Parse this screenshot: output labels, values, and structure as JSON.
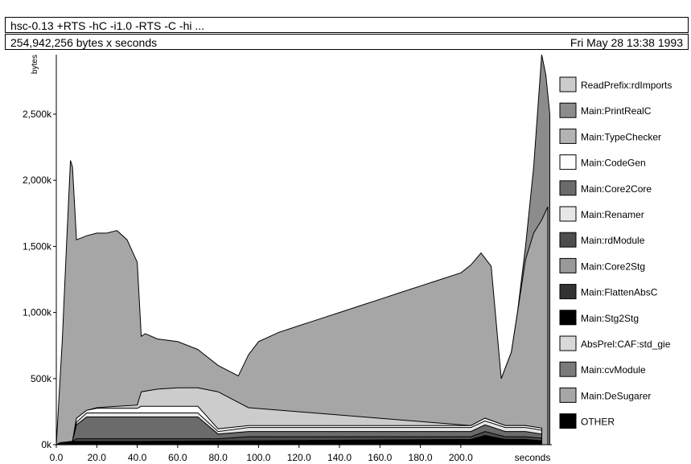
{
  "header": {
    "title": "hsc-0.13  +RTS -hC -i1.0 -RTS  -C -hi ...",
    "bytes_seconds": "254,942,256 bytes x seconds",
    "date": "Fri May 28 13:38 1993"
  },
  "chart_data": {
    "type": "area",
    "xlabel": "seconds",
    "ylabel": "bytes",
    "xlim": [
      0,
      245
    ],
    "ylim": [
      0,
      2950000
    ],
    "x_ticks": [
      0,
      20,
      40,
      60,
      80,
      100,
      120,
      140,
      160,
      180,
      200
    ],
    "x_tick_labels": [
      "0.0",
      "20.0",
      "40.0",
      "60.0",
      "80.0",
      "100.0",
      "120.0",
      "140.0",
      "160.0",
      "180.0",
      "200.0"
    ],
    "y_ticks": [
      0,
      500000,
      1000000,
      1500000,
      2000000,
      2500000
    ],
    "y_tick_labels": [
      "0k",
      "500k",
      "1,000k",
      "1,500k",
      "2,000k",
      "2,500k"
    ],
    "legend_position": "right",
    "legend": [
      {
        "name": "ReadPrefix:rdImports",
        "color": "#cccccc"
      },
      {
        "name": "Main:PrintRealC",
        "color": "#8c8c8c"
      },
      {
        "name": "Main:TypeChecker",
        "color": "#b3b3b3"
      },
      {
        "name": "Main:CodeGen",
        "color": "#ffffff"
      },
      {
        "name": "Main:Core2Core",
        "color": "#6b6b6b"
      },
      {
        "name": "Main:Renamer",
        "color": "#e6e6e6"
      },
      {
        "name": "Main:rdModule",
        "color": "#4d4d4d"
      },
      {
        "name": "Main:Core2Stg",
        "color": "#999999"
      },
      {
        "name": "Main:FlattenAbsC",
        "color": "#333333"
      },
      {
        "name": "Main:Stg2Stg",
        "color": "#000000"
      },
      {
        "name": "AbsPrel:CAF:std_gie",
        "color": "#d9d9d9"
      },
      {
        "name": "Main:cvModule",
        "color": "#7a7a7a"
      },
      {
        "name": "Main:DeSugarer",
        "color": "#a6a6a6"
      },
      {
        "name": "OTHER",
        "color": "#000000"
      }
    ],
    "layers": [
      {
        "name": "OTHER",
        "color": "#000000",
        "x": [
          0,
          2,
          5,
          8,
          40,
          80,
          95,
          205,
          212,
          222,
          232,
          240
        ],
        "y": [
          0,
          15000,
          20000,
          25000,
          25000,
          30000,
          30000,
          40000,
          70000,
          40000,
          40000,
          30000
        ]
      },
      {
        "name": "Main:rdModule",
        "color": "#4d4d4d",
        "x": [
          0,
          2,
          5,
          8,
          10,
          80,
          95,
          205,
          212,
          222,
          232,
          240
        ],
        "y": [
          0,
          15000,
          20000,
          25000,
          45000,
          45000,
          60000,
          60000,
          100000,
          60000,
          60000,
          50000
        ]
      },
      {
        "name": "Main:Core2Core",
        "color": "#6b6b6b",
        "x": [
          0,
          5,
          8,
          10,
          15,
          70,
          80,
          95,
          205,
          212,
          222,
          232,
          240
        ],
        "y": [
          0,
          20000,
          25000,
          150000,
          210000,
          210000,
          80000,
          100000,
          100000,
          150000,
          100000,
          100000,
          80000
        ]
      },
      {
        "name": "Main:Renamer",
        "color": "#e6e6e6",
        "x": [
          0,
          5,
          8,
          10,
          15,
          70,
          80,
          95,
          205,
          212,
          222,
          232,
          240
        ],
        "y": [
          0,
          20000,
          25000,
          170000,
          240000,
          240000,
          100000,
          130000,
          130000,
          180000,
          130000,
          130000,
          110000
        ]
      },
      {
        "name": "Main:CodeGen",
        "color": "#ffffff",
        "x": [
          0,
          5,
          8,
          10,
          15,
          20,
          30,
          40,
          42,
          50,
          60,
          70,
          80,
          95,
          205,
          212,
          222,
          232,
          240
        ],
        "y": [
          0,
          20000,
          25000,
          200000,
          260000,
          275000,
          275000,
          275000,
          290000,
          290000,
          290000,
          290000,
          120000,
          145000,
          145000,
          200000,
          145000,
          145000,
          125000
        ]
      },
      {
        "name": "ReadPrefix:rdImports",
        "color": "#cccccc",
        "x": [
          0,
          5,
          8,
          10,
          15,
          20,
          30,
          40,
          42,
          50,
          60,
          70,
          80,
          95,
          205,
          212,
          222,
          232,
          240
        ],
        "y": [
          0,
          20000,
          25000,
          200000,
          260000,
          280000,
          290000,
          300000,
          400000,
          420000,
          430000,
          430000,
          400000,
          280000,
          145000,
          200000,
          145000,
          145000,
          125000
        ]
      },
      {
        "name": "Main:DeSugarer",
        "color": "#a6a6a6",
        "x": [
          0,
          3,
          5,
          7,
          8,
          10,
          15,
          20,
          25,
          30,
          35,
          40,
          42,
          44,
          50,
          60,
          70,
          80,
          90,
          95,
          100,
          110,
          120,
          130,
          140,
          150,
          160,
          170,
          180,
          190,
          200,
          205,
          210,
          215,
          220,
          225,
          228,
          232,
          236,
          240,
          243
        ],
        "y": [
          0,
          800000,
          1500000,
          2150000,
          2100000,
          1550000,
          1580000,
          1600000,
          1600000,
          1620000,
          1550000,
          1380000,
          820000,
          840000,
          800000,
          780000,
          720000,
          600000,
          520000,
          680000,
          780000,
          850000,
          900000,
          950000,
          1000000,
          1050000,
          1100000,
          1150000,
          1200000,
          1250000,
          1300000,
          1360000,
          1450000,
          1350000,
          500000,
          700000,
          1000000,
          1400000,
          1600000,
          1700000,
          1800000
        ]
      },
      {
        "name": "Main:PrintRealC",
        "color": "#8c8c8c",
        "x": [
          220,
          225,
          228,
          232,
          236,
          240,
          242,
          244
        ],
        "y": [
          500000,
          700000,
          1000000,
          1500000,
          2100000,
          2950000,
          2800000,
          2500000
        ]
      }
    ]
  }
}
